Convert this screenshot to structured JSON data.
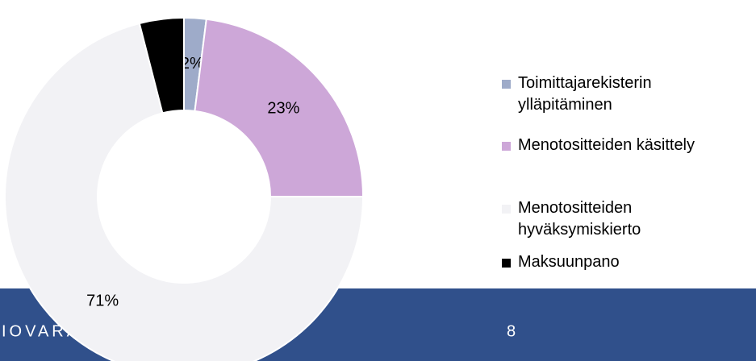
{
  "chart_data": {
    "type": "donut",
    "categories": [
      "Toimittajarekisterin ylläpitäminen",
      "Menotositteiden käsittely",
      "Menotositteiden hyväksymiskierto",
      "Maksuunpano"
    ],
    "values": [
      2,
      23,
      71,
      4
    ],
    "value_labels": [
      "2%",
      "23%",
      "71%",
      null
    ],
    "colors": [
      "#9eabc9",
      "#cda7d8",
      "#f2f2f5",
      "#000000"
    ],
    "legend": "right"
  },
  "footer": {
    "left": "IOVARA",
    "page": "8"
  }
}
